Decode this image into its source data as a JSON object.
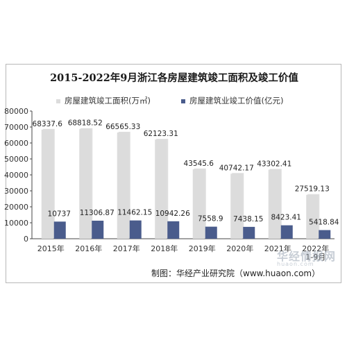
{
  "chart_data": {
    "type": "bar",
    "title": "2015-2022年9月浙江各房屋建筑竣工面积及竣工价值",
    "categories": [
      "2015年",
      "2016年",
      "2017年",
      "2018年",
      "2019年",
      "2020年",
      "2021年",
      "2022年\n1-9月"
    ],
    "series": [
      {
        "name": "房屋建筑竣工面积(万㎡)",
        "values": [
          68337.6,
          68818.52,
          66565.33,
          62123.31,
          43545.6,
          40742.17,
          43302.41,
          27519.13
        ],
        "labels": [
          "68337.6",
          "68818.52",
          "66565.33",
          "62123.31",
          "43545.6",
          "40742.17",
          "43302.41",
          "27519.13"
        ],
        "color": "#dcdcdc"
      },
      {
        "name": "房屋建筑业竣工价值(亿元)",
        "values": [
          10737,
          11306.87,
          11462.15,
          10942.26,
          7558.9,
          7438.15,
          8423.41,
          5418.84
        ],
        "labels": [
          "10737",
          "11306.87",
          "11462.15",
          "10942.26",
          "7558.9",
          "7438.15",
          "8423.41",
          "5418.84"
        ],
        "color": "#4a5c8c"
      }
    ],
    "ylim": [
      0,
      80000
    ],
    "yticks": [
      "0",
      "10000",
      "20000",
      "30000",
      "40000",
      "50000",
      "60000",
      "70000",
      "80000"
    ],
    "grid": false,
    "legend_position": "top"
  },
  "source": "制图：华经产业研究院（www.huaon.com）",
  "watermark": {
    "text": "华经情报网",
    "sub": "huaon.com"
  }
}
